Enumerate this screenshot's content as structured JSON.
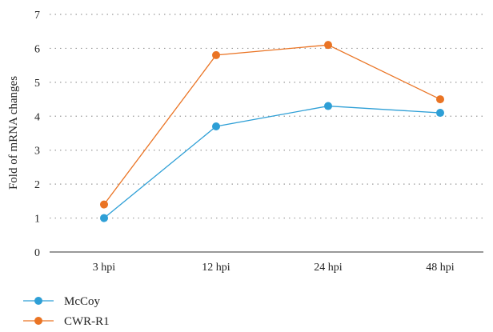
{
  "chart_data": {
    "type": "line",
    "categories": [
      "3 hpi",
      "12 hpi",
      "24 hpi",
      "48 hpi"
    ],
    "series": [
      {
        "name": "McCoy",
        "values": [
          1.0,
          3.7,
          4.3,
          4.1
        ],
        "color": "#2e9fd6"
      },
      {
        "name": "CWR-R1",
        "values": [
          1.4,
          5.8,
          6.1,
          4.5
        ],
        "color": "#ea7424"
      }
    ],
    "title": "",
    "xlabel": "",
    "ylabel": "Fold of mRNA changes",
    "ylim": [
      0,
      7
    ],
    "yticks": [
      0,
      1,
      2,
      3,
      4,
      5,
      6,
      7
    ],
    "grid": "horizontal-dotted",
    "legend_position": "bottom-left"
  }
}
